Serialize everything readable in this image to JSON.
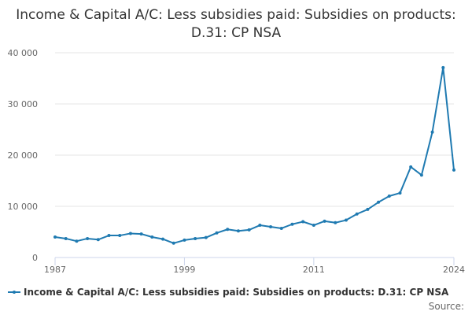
{
  "chart_data": {
    "type": "line",
    "title": "Income & Capital A/C: Less subsidies paid: Subsidies on products: D.31: CP NSA",
    "xlabel": "",
    "ylabel": "",
    "x": [
      1987,
      1988,
      1989,
      1990,
      1991,
      1992,
      1993,
      1994,
      1995,
      1996,
      1997,
      1998,
      1999,
      2000,
      2001,
      2002,
      2003,
      2004,
      2005,
      2006,
      2007,
      2008,
      2009,
      2010,
      2011,
      2012,
      2013,
      2014,
      2015,
      2016,
      2017,
      2018,
      2019,
      2020,
      2021,
      2022,
      2023,
      2024
    ],
    "series": [
      {
        "name": "Income & Capital A/C: Less subsidies paid: Subsidies on products: D.31: CP NSA",
        "values": [
          4000,
          3700,
          3200,
          3700,
          3500,
          4300,
          4300,
          4700,
          4600,
          4000,
          3600,
          2800,
          3400,
          3700,
          3900,
          4800,
          5500,
          5200,
          5400,
          6300,
          6000,
          5700,
          6500,
          7000,
          6300,
          7100,
          6800,
          7300,
          8500,
          9400,
          10800,
          12000,
          12600,
          17700,
          16100,
          24500,
          37100,
          17100
        ]
      }
    ],
    "x_ticks": [
      "1987",
      "1999",
      "2011",
      "2024"
    ],
    "y_ticks": [
      "0",
      "10 000",
      "20 000",
      "30 000",
      "40 000"
    ],
    "y_tick_values": [
      0,
      10000,
      20000,
      30000,
      40000
    ],
    "xlim": [
      1987,
      2024
    ],
    "ylim": [
      0,
      40000
    ],
    "grid": true,
    "legend_position": "bottom",
    "line_color": "#1f7ab1",
    "credits_label": "Source:"
  }
}
